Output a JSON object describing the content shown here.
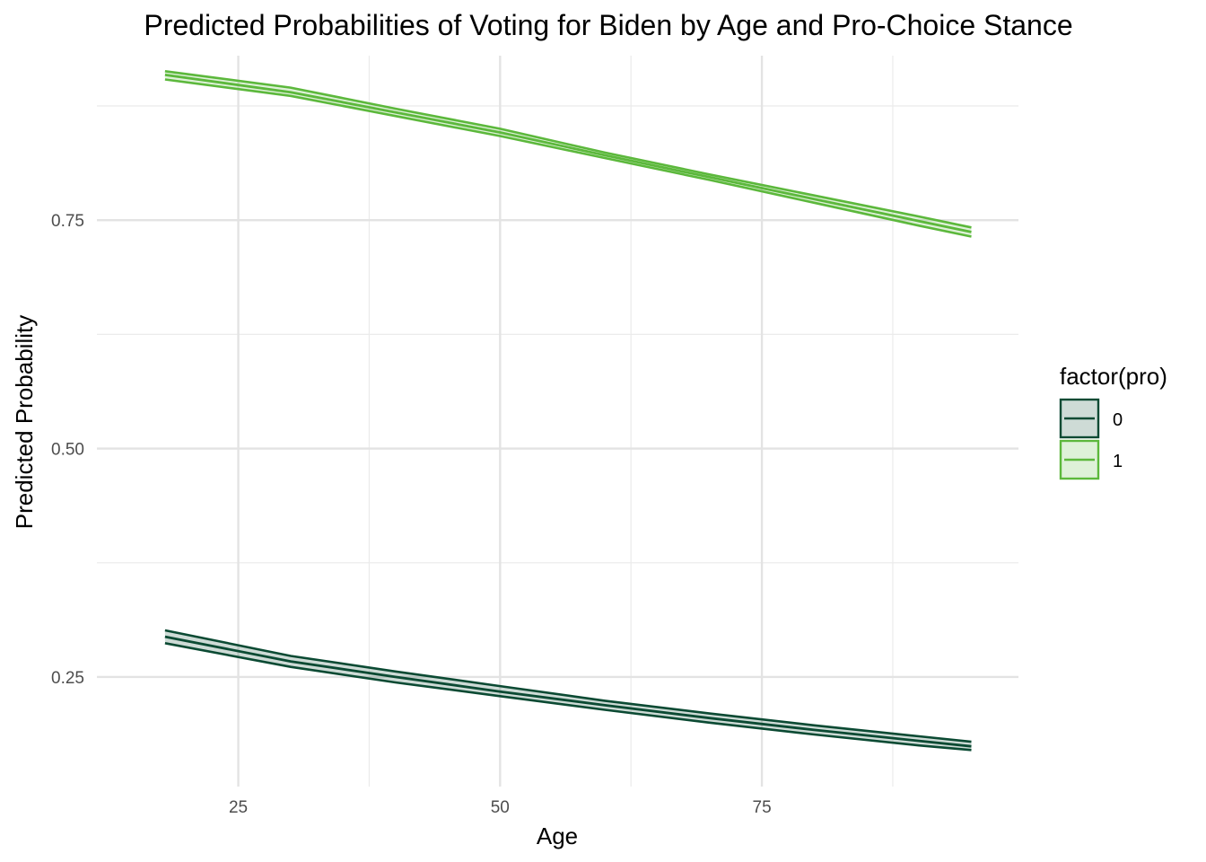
{
  "chart_data": {
    "type": "line",
    "title": "Predicted Probabilities of Voting for Biden by Age and Pro-Choice Stance",
    "xlabel": "Age",
    "ylabel": "Predicted Probability",
    "xlim": [
      11.5,
      99.5
    ],
    "ylim": [
      0.13,
      0.93
    ],
    "x_major_ticks": [
      25,
      50,
      75
    ],
    "x_minor_ticks": [
      37.5,
      62.5,
      87.5
    ],
    "y_major_ticks": [
      0.25,
      0.5,
      0.75
    ],
    "y_minor_ticks": [
      0.375,
      0.625,
      0.875
    ],
    "x_tick_labels": [
      "25",
      "50",
      "75"
    ],
    "y_tick_labels": [
      "0.25",
      "0.50",
      "0.75"
    ],
    "grid": true,
    "legend": {
      "title": "factor(pro)",
      "position": "right",
      "entries": [
        "0",
        "1"
      ]
    },
    "x": [
      18,
      30,
      40,
      50,
      60,
      70,
      80,
      90,
      95
    ],
    "series": [
      {
        "name": "0",
        "color": "#0b4a33",
        "fill": "#0b4a33",
        "values": [
          0.294,
          0.267,
          0.25,
          0.234,
          0.219,
          0.205,
          0.192,
          0.18,
          0.174
        ],
        "lower": [
          0.287,
          0.261,
          0.244,
          0.229,
          0.214,
          0.2,
          0.187,
          0.175,
          0.17
        ],
        "upper": [
          0.301,
          0.273,
          0.256,
          0.24,
          0.224,
          0.21,
          0.197,
          0.185,
          0.179
        ]
      },
      {
        "name": "1",
        "color": "#5cb83c",
        "fill": "#5cb83c",
        "values": [
          0.909,
          0.89,
          0.868,
          0.846,
          0.821,
          0.797,
          0.773,
          0.749,
          0.737
        ],
        "lower": [
          0.904,
          0.886,
          0.864,
          0.842,
          0.818,
          0.794,
          0.769,
          0.744,
          0.732
        ],
        "upper": [
          0.913,
          0.895,
          0.872,
          0.85,
          0.824,
          0.8,
          0.777,
          0.754,
          0.742
        ]
      }
    ]
  }
}
